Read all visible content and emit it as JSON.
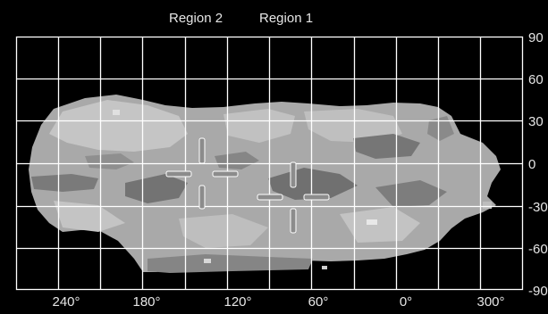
{
  "regions": {
    "region_2_label": "Region 2",
    "region_1_label": "Region 1"
  },
  "latitude_labels": [
    "90",
    "60",
    "30",
    "0",
    "-30",
    "-60",
    "-90"
  ],
  "longitude_labels": [
    "240°",
    "180°",
    "120°",
    "60°",
    "0°",
    "300°"
  ],
  "colors": {
    "background": "#000000",
    "grid": "#ffffff",
    "map_base": "#a9a9a9",
    "marker": "#8c8c8c"
  },
  "icons": {
    "region_2_marker": "crosshair-icon",
    "region_1_marker": "crosshair-icon"
  }
}
